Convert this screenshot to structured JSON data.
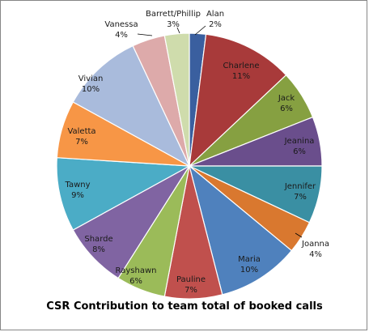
{
  "chart_data": {
    "type": "pie",
    "title": "CSR Contribution to team total of booked calls",
    "legend": "none",
    "slices": [
      {
        "name": "Alan",
        "value": 2,
        "label": "2%",
        "color": "#3a5f9f"
      },
      {
        "name": "Charlene",
        "value": 11,
        "label": "11%",
        "color": "#a83a3a"
      },
      {
        "name": "Jack",
        "value": 6,
        "label": "6%",
        "color": "#86a041"
      },
      {
        "name": "Jeanina",
        "value": 6,
        "label": "6%",
        "color": "#6a4e8c"
      },
      {
        "name": "Jennifer",
        "value": 7,
        "label": "7%",
        "color": "#3a8fa3"
      },
      {
        "name": "Joanna",
        "value": 4,
        "label": "4%",
        "color": "#d9782f"
      },
      {
        "name": "Maria",
        "value": 10,
        "label": "10%",
        "color": "#4f81bd"
      },
      {
        "name": "Pauline",
        "value": 7,
        "label": "7%",
        "color": "#c0504d"
      },
      {
        "name": "Rayshawn",
        "value": 6,
        "label": "6%",
        "color": "#9bbb59"
      },
      {
        "name": "Sharde",
        "value": 8,
        "label": "8%",
        "color": "#8064a2"
      },
      {
        "name": "Tawny",
        "value": 9,
        "label": "9%",
        "color": "#4bacc6"
      },
      {
        "name": "Valetta",
        "value": 7,
        "label": "7%",
        "color": "#f79646"
      },
      {
        "name": "Vivian",
        "value": 10,
        "label": "10%",
        "color": "#a9bbdc"
      },
      {
        "name": "Vanessa",
        "value": 4,
        "label": "4%",
        "color": "#ddaaaa"
      },
      {
        "name": "Barrett/Phillip",
        "value": 3,
        "label": "3%",
        "color": "#cfdcac"
      }
    ]
  }
}
